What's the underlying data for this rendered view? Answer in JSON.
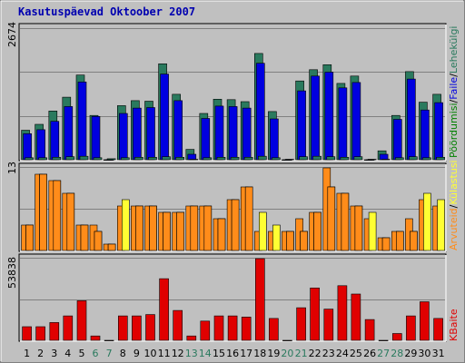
{
  "title": "Kasutuspäevad Oktoober 2007",
  "colors": {
    "bg": "#c0c0c0",
    "pages": "#2a7a5e",
    "files": "#0000e0",
    "hits": "#008000",
    "kbytes": "#e00000",
    "visits": "#ff8c1a",
    "sites": "#ffff33",
    "weekday_label": "#000000",
    "weekend_label": "#2a7a5e"
  },
  "legend": {
    "top_hits": "Pöördumisi",
    "top_sep1": "/",
    "top_files": "Faile",
    "top_sep2": "/",
    "top_pages": "Lehekülgi",
    "mid_visits": "Arvuteid",
    "mid_sep": "/",
    "mid_sites": "Külastusi",
    "bot_kbytes": "KBaite"
  },
  "axes": {
    "top_max": "2674",
    "mid_max": "13",
    "bot_max": "53838"
  },
  "chart_data": [
    {
      "type": "bar",
      "title": "Kasutuspäevad Oktoober 2007",
      "categories": [
        "1",
        "2",
        "3",
        "4",
        "5",
        "6",
        "7",
        "8",
        "9",
        "10",
        "11",
        "12",
        "13",
        "14",
        "15",
        "16",
        "17",
        "18",
        "19",
        "20",
        "21",
        "22",
        "23",
        "24",
        "25",
        "26",
        "27",
        "28",
        "29",
        "30",
        "31"
      ],
      "weekend_days": [
        "6",
        "7",
        "13",
        "14",
        "20",
        "21",
        "27",
        "28"
      ],
      "ymax": 2674,
      "series": [
        {
          "name": "Pöördumisi",
          "values": [
            600,
            720,
            990,
            1270,
            1720,
            900,
            0,
            1100,
            1200,
            1190,
            1950,
            1330,
            210,
            940,
            1230,
            1220,
            1180,
            2160,
            980,
            0,
            1600,
            1830,
            1930,
            1550,
            1700,
            0,
            180,
            900,
            1790,
            1170,
            1330
          ]
        },
        {
          "name": "Faile",
          "values": [
            530,
            610,
            780,
            1080,
            1580,
            880,
            0,
            940,
            1050,
            1060,
            1740,
            1200,
            110,
            840,
            1090,
            1080,
            1050,
            1960,
            830,
            0,
            1400,
            1700,
            1780,
            1460,
            1570,
            0,
            110,
            820,
            1640,
            1010,
            1160
          ]
        },
        {
          "name": "Lehekülgi",
          "values": [
            40,
            40,
            50,
            60,
            70,
            40,
            20,
            40,
            50,
            50,
            60,
            50,
            10,
            40,
            50,
            50,
            50,
            70,
            40,
            10,
            60,
            70,
            60,
            50,
            60,
            10,
            10,
            40,
            60,
            40,
            50
          ]
        }
      ]
    },
    {
      "type": "bar",
      "categories": [
        "1",
        "2",
        "3",
        "4",
        "5",
        "6",
        "7",
        "8",
        "9",
        "10",
        "11",
        "12",
        "13",
        "14",
        "15",
        "16",
        "17",
        "18",
        "19",
        "20",
        "21",
        "22",
        "23",
        "24",
        "25",
        "26",
        "27",
        "28",
        "29",
        "30",
        "31"
      ],
      "ymax": 13,
      "series": [
        {
          "name": "Külastusi",
          "values": [
            4,
            12,
            11,
            9,
            4,
            3,
            1,
            8,
            7,
            7,
            6,
            6,
            7,
            7,
            5,
            8,
            10,
            6,
            4,
            3,
            3,
            6,
            10,
            9,
            7,
            6,
            2,
            3,
            3,
            9,
            8
          ]
        },
        {
          "name": "Arvuteid",
          "values": [
            4,
            12,
            11,
            9,
            4,
            4,
            1,
            7,
            7,
            7,
            6,
            6,
            7,
            7,
            5,
            8,
            10,
            3,
            3,
            3,
            5,
            6,
            13,
            9,
            7,
            5,
            2,
            3,
            5,
            8,
            7
          ]
        }
      ]
    },
    {
      "type": "bar",
      "categories": [
        "1",
        "2",
        "3",
        "4",
        "5",
        "6",
        "7",
        "8",
        "9",
        "10",
        "11",
        "12",
        "13",
        "14",
        "15",
        "16",
        "17",
        "18",
        "19",
        "20",
        "21",
        "22",
        "23",
        "24",
        "25",
        "26",
        "27",
        "28",
        "29",
        "30",
        "31"
      ],
      "ymax": 53838,
      "series": [
        {
          "name": "KBaite",
          "values": [
            9000,
            9000,
            11700,
            16100,
            26100,
            2900,
            0,
            16100,
            16100,
            17000,
            40600,
            19700,
            2900,
            12700,
            16100,
            16100,
            15300,
            53838,
            14400,
            0,
            21500,
            34500,
            20600,
            36000,
            30500,
            13700,
            0,
            4500,
            16100,
            25400,
            14400
          ]
        }
      ]
    }
  ]
}
